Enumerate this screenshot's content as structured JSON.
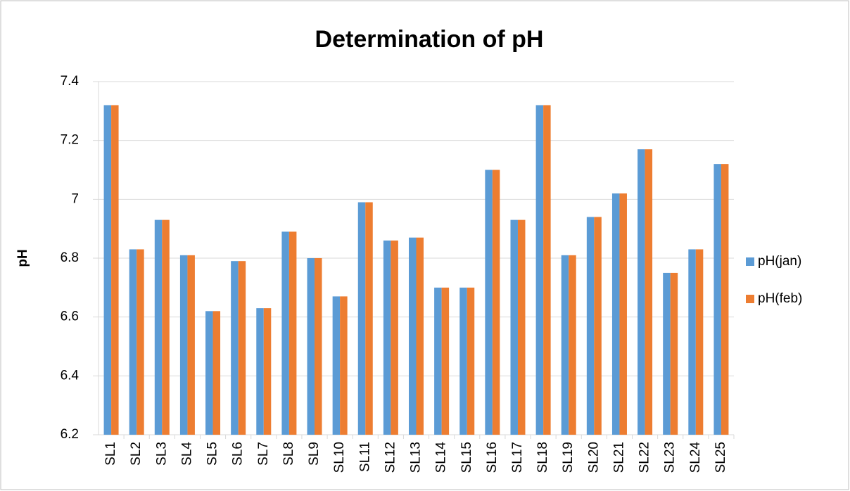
{
  "chart_data": {
    "type": "bar",
    "title": "Determination of pH",
    "y_label": "pH",
    "categories": [
      "SL1",
      "SL2",
      "SL3",
      "SL4",
      "SL5",
      "SL6",
      "SL7",
      "SL8",
      "SL9",
      "SL10",
      "SL11",
      "SL12",
      "SL13",
      "SL14",
      "SL15",
      "SL16",
      "SL17",
      "SL18",
      "SL19",
      "SL20",
      "SL21",
      "SL22",
      "SL23",
      "SL24",
      "SL25"
    ],
    "series": [
      {
        "name": "pH(jan)",
        "color": "#5b9bd5",
        "values": [
          7.32,
          6.83,
          6.93,
          6.81,
          6.62,
          6.79,
          6.63,
          6.89,
          6.8,
          6.67,
          6.99,
          6.86,
          6.87,
          6.7,
          6.7,
          7.1,
          6.93,
          7.32,
          6.81,
          6.94,
          7.02,
          7.17,
          6.75,
          6.83,
          7.12
        ]
      },
      {
        "name": "pH(feb)",
        "color": "#ed7d31",
        "values": [
          7.32,
          6.83,
          6.93,
          6.81,
          6.62,
          6.79,
          6.63,
          6.89,
          6.8,
          6.67,
          6.99,
          6.86,
          6.87,
          6.7,
          6.7,
          7.1,
          6.93,
          7.32,
          6.81,
          6.94,
          7.02,
          7.17,
          6.75,
          6.83,
          7.12
        ]
      }
    ],
    "ylim": [
      6.2,
      7.4
    ],
    "yticks": [
      6.2,
      6.4,
      6.6,
      6.8,
      7,
      7.2,
      7.4
    ],
    "grid": true,
    "legend": "right"
  }
}
